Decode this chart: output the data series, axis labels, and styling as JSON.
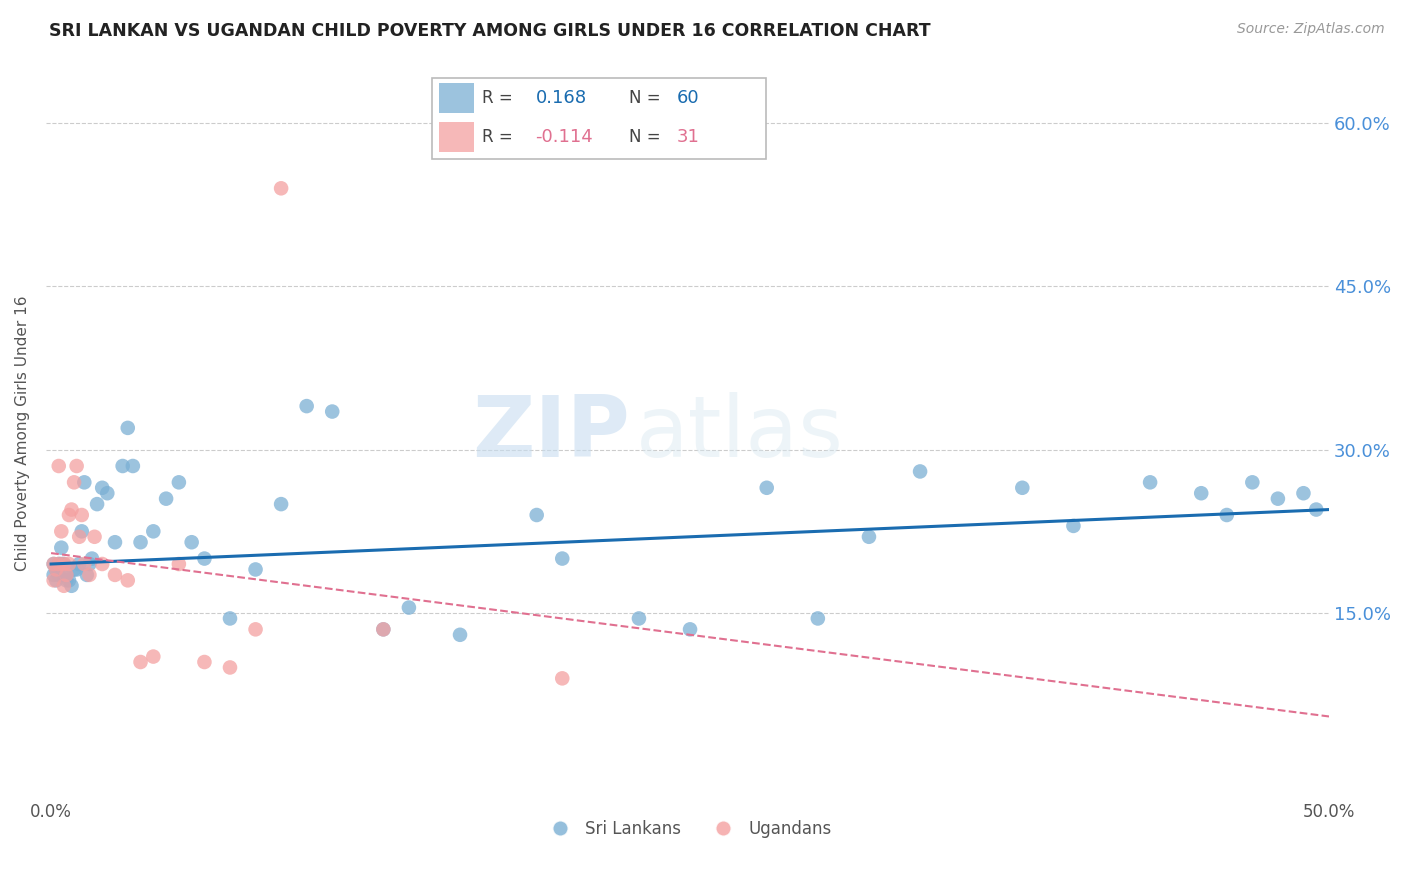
{
  "title": "SRI LANKAN VS UGANDAN CHILD POVERTY AMONG GIRLS UNDER 16 CORRELATION CHART",
  "source": "Source: ZipAtlas.com",
  "ylabel": "Child Poverty Among Girls Under 16",
  "xlabel_ticks": [
    "0.0%",
    "",
    "",
    "",
    "",
    "50.0%"
  ],
  "xlabel_vals": [
    0.0,
    0.1,
    0.2,
    0.3,
    0.4,
    0.5
  ],
  "ylabel_ticks": [
    "15.0%",
    "30.0%",
    "45.0%",
    "60.0%"
  ],
  "ylabel_vals": [
    0.15,
    0.3,
    0.45,
    0.6
  ],
  "xlim": [
    -0.002,
    0.5
  ],
  "ylim": [
    -0.02,
    0.65
  ],
  "sri_lanka_color": "#7bafd4",
  "uganda_color": "#f4a0a0",
  "sri_lanka_line_color": "#1a6cb0",
  "uganda_line_color": "#e07090",
  "sri_lanka_R": "0.168",
  "sri_lanka_N": "60",
  "uganda_R": "-0.114",
  "uganda_N": "31",
  "legend_label_sl": "Sri Lankans",
  "legend_label_ug": "Ugandans",
  "watermark_zip": "ZIP",
  "watermark_atlas": "atlas",
  "sl_line_start_y": 0.195,
  "sl_line_end_y": 0.245,
  "ug_line_start_y": 0.205,
  "ug_line_end_y": 0.055,
  "sri_lanka_x": [
    0.001,
    0.001,
    0.002,
    0.002,
    0.003,
    0.003,
    0.004,
    0.004,
    0.005,
    0.005,
    0.006,
    0.006,
    0.007,
    0.008,
    0.009,
    0.01,
    0.011,
    0.012,
    0.013,
    0.014,
    0.015,
    0.016,
    0.018,
    0.02,
    0.022,
    0.025,
    0.028,
    0.03,
    0.032,
    0.035,
    0.04,
    0.045,
    0.05,
    0.055,
    0.06,
    0.07,
    0.08,
    0.09,
    0.1,
    0.11,
    0.13,
    0.14,
    0.16,
    0.19,
    0.2,
    0.23,
    0.25,
    0.28,
    0.3,
    0.32,
    0.34,
    0.38,
    0.4,
    0.43,
    0.46,
    0.48,
    0.495,
    0.49,
    0.47,
    0.45
  ],
  "sri_lanka_y": [
    0.195,
    0.185,
    0.19,
    0.18,
    0.195,
    0.185,
    0.195,
    0.21,
    0.195,
    0.185,
    0.185,
    0.18,
    0.18,
    0.175,
    0.19,
    0.19,
    0.195,
    0.225,
    0.27,
    0.185,
    0.195,
    0.2,
    0.25,
    0.265,
    0.26,
    0.215,
    0.285,
    0.32,
    0.285,
    0.215,
    0.225,
    0.255,
    0.27,
    0.215,
    0.2,
    0.145,
    0.19,
    0.25,
    0.34,
    0.335,
    0.135,
    0.155,
    0.13,
    0.24,
    0.2,
    0.145,
    0.135,
    0.265,
    0.145,
    0.22,
    0.28,
    0.265,
    0.23,
    0.27,
    0.24,
    0.255,
    0.245,
    0.26,
    0.27,
    0.26
  ],
  "uganda_x": [
    0.001,
    0.001,
    0.002,
    0.003,
    0.003,
    0.004,
    0.005,
    0.005,
    0.006,
    0.007,
    0.007,
    0.008,
    0.009,
    0.01,
    0.011,
    0.012,
    0.013,
    0.015,
    0.017,
    0.02,
    0.025,
    0.03,
    0.035,
    0.04,
    0.05,
    0.06,
    0.07,
    0.08,
    0.09,
    0.13,
    0.2
  ],
  "uganda_y": [
    0.195,
    0.18,
    0.19,
    0.195,
    0.285,
    0.225,
    0.195,
    0.175,
    0.185,
    0.195,
    0.24,
    0.245,
    0.27,
    0.285,
    0.22,
    0.24,
    0.195,
    0.185,
    0.22,
    0.195,
    0.185,
    0.18,
    0.105,
    0.11,
    0.195,
    0.105,
    0.1,
    0.135,
    0.54,
    0.135,
    0.09
  ]
}
